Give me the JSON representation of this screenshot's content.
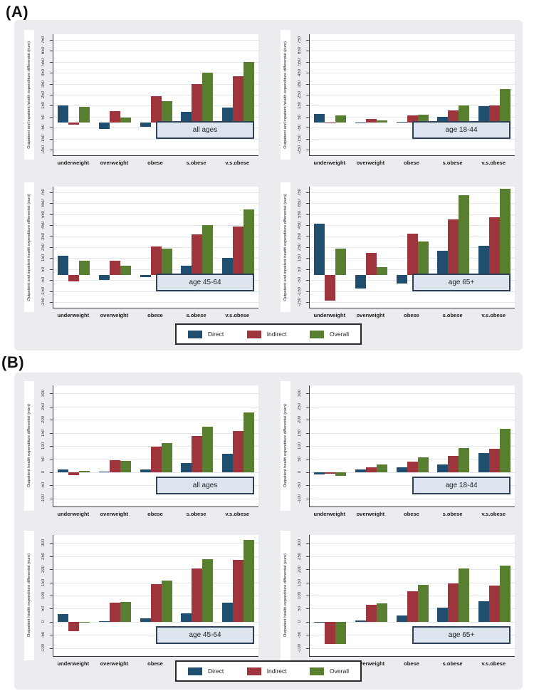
{
  "figure": {
    "panel_a_label": "(A)",
    "panel_b_label": "(B)",
    "legend": {
      "position": "bottom-center",
      "items": [
        {
          "label": "Direct",
          "color": "#1f4e6e"
        },
        {
          "label": "Indirect",
          "color": "#9e353c"
        },
        {
          "label": "Overall",
          "color": "#587e2f"
        }
      ]
    },
    "colors": {
      "panel_background": "#eaecef",
      "plot_background": "#ffffff",
      "gridline": "#e2e6eb",
      "age_box_fill": "#dde6ef",
      "age_box_border": "#2f4157"
    }
  },
  "chart_data": [
    {
      "type": "bar",
      "panel": "A",
      "title": "all ages",
      "ylabel": "Outpatient and inpatient health expenditure differential (euro)",
      "xlabel": "",
      "categories": [
        "underweight",
        "overweight",
        "obese",
        "s.obese",
        "v.s.obese"
      ],
      "series": [
        {
          "name": "Direct",
          "values": [
            150,
            -60,
            -40,
            95,
            135
          ]
        },
        {
          "name": "Indirect",
          "values": [
            -20,
            100,
            240,
            350,
            420
          ]
        },
        {
          "name": "Overall",
          "values": [
            140,
            40,
            190,
            450,
            550
          ]
        }
      ],
      "yticks": [
        -250,
        -150,
        -50,
        50,
        150,
        250,
        350,
        450,
        550,
        650,
        750
      ],
      "ylim": [
        -300,
        800
      ],
      "grid": true
    },
    {
      "type": "bar",
      "panel": "A",
      "title": "age 18-44",
      "ylabel": "Outpatient and inpatient health expenditure differential (euro)",
      "xlabel": "",
      "categories": [
        "underweight",
        "overweight",
        "obese",
        "s.obese",
        "v.s.obese"
      ],
      "series": [
        {
          "name": "Direct",
          "values": [
            75,
            -8,
            5,
            48,
            145
          ]
        },
        {
          "name": "Indirect",
          "values": [
            -12,
            30,
            65,
            110,
            155
          ]
        },
        {
          "name": "Overall",
          "values": [
            60,
            18,
            70,
            155,
            300
          ]
        }
      ],
      "yticks": [
        -250,
        -150,
        -50,
        50,
        150,
        250,
        350,
        450,
        550,
        650,
        750
      ],
      "ylim": [
        -300,
        800
      ],
      "grid": true
    },
    {
      "type": "bar",
      "panel": "A",
      "title": "age 45-64",
      "ylabel": "Outpatient and inpatient health expenditure differential (euro)",
      "xlabel": "",
      "categories": [
        "underweight",
        "overweight",
        "obese",
        "s.obese",
        "v.s.obese"
      ],
      "series": [
        {
          "name": "Direct",
          "values": [
            175,
            -45,
            -20,
            80,
            155
          ]
        },
        {
          "name": "Indirect",
          "values": [
            -60,
            130,
            255,
            365,
            440
          ]
        },
        {
          "name": "Overall",
          "values": [
            125,
            80,
            235,
            450,
            590
          ]
        }
      ],
      "yticks": [
        -250,
        -150,
        -50,
        50,
        150,
        250,
        350,
        450,
        550,
        650,
        750
      ],
      "ylim": [
        -300,
        800
      ],
      "grid": true
    },
    {
      "type": "bar",
      "panel": "A",
      "title": "age 65+",
      "ylabel": "Outpatient and inpatient health expenditure differential (euro)",
      "xlabel": "",
      "categories": [
        "underweight",
        "overweight",
        "obese",
        "s.obese",
        "v.s.obese"
      ],
      "series": [
        {
          "name": "Direct",
          "values": [
            465,
            -125,
            -80,
            215,
            265
          ]
        },
        {
          "name": "Indirect",
          "values": [
            -235,
            200,
            375,
            500,
            525
          ]
        },
        {
          "name": "Overall",
          "values": [
            235,
            70,
            300,
            720,
            780
          ]
        }
      ],
      "yticks": [
        -250,
        -150,
        -50,
        50,
        150,
        250,
        350,
        450,
        550,
        650,
        750
      ],
      "ylim": [
        -300,
        800
      ],
      "grid": true
    },
    {
      "type": "bar",
      "panel": "B",
      "title": "all ages",
      "ylabel": "Outpatient health expenditure differential (euro)",
      "xlabel": "",
      "categories": [
        "underweight",
        "overweight",
        "obese",
        "s.obese",
        "v.s.obese"
      ],
      "series": [
        {
          "name": "Direct",
          "values": [
            12,
            2,
            12,
            34,
            70
          ]
        },
        {
          "name": "Indirect",
          "values": [
            -12,
            46,
            97,
            138,
            158
          ]
        },
        {
          "name": "Overall",
          "values": [
            5,
            44,
            110,
            172,
            228
          ]
        }
      ],
      "yticks": [
        -100,
        -50,
        0,
        50,
        100,
        150,
        200,
        250,
        300
      ],
      "ylim": [
        -130,
        330
      ],
      "grid": true
    },
    {
      "type": "bar",
      "panel": "B",
      "title": "age 18-44",
      "ylabel": "Outpatient health expenditure differential (euro)",
      "xlabel": "",
      "categories": [
        "underweight",
        "overweight",
        "obese",
        "s.obese",
        "v.s.obese"
      ],
      "series": [
        {
          "name": "Direct",
          "values": [
            -8,
            10,
            18,
            31,
            73
          ]
        },
        {
          "name": "Indirect",
          "values": [
            -5,
            18,
            40,
            63,
            90
          ]
        },
        {
          "name": "Overall",
          "values": [
            -15,
            29,
            58,
            93,
            164
          ]
        }
      ],
      "yticks": [
        -100,
        -50,
        0,
        50,
        100,
        150,
        200,
        250,
        300
      ],
      "ylim": [
        -130,
        330
      ],
      "grid": true
    },
    {
      "type": "bar",
      "panel": "B",
      "title": "age 45-64",
      "ylabel": "Outpatient health expenditure differential (euro)",
      "xlabel": "",
      "categories": [
        "underweight",
        "overweight",
        "obese",
        "s.obese",
        "v.s.obese"
      ],
      "series": [
        {
          "name": "Direct",
          "values": [
            30,
            2,
            13,
            32,
            73
          ]
        },
        {
          "name": "Indirect",
          "values": [
            -35,
            74,
            144,
            204,
            236
          ]
        },
        {
          "name": "Overall",
          "values": [
            -3,
            76,
            158,
            237,
            310
          ]
        }
      ],
      "yticks": [
        -100,
        -50,
        0,
        50,
        100,
        150,
        200,
        250,
        300
      ],
      "ylim": [
        -130,
        330
      ],
      "grid": true
    },
    {
      "type": "bar",
      "panel": "B",
      "title": "age 65+",
      "ylabel": "Outpatient health expenditure differential (euro)",
      "xlabel": "",
      "categories": [
        "underweight",
        "overweight",
        "obese",
        "s.obese",
        "v.s.obese"
      ],
      "series": [
        {
          "name": "Direct",
          "values": [
            -2,
            5,
            25,
            55,
            78
          ]
        },
        {
          "name": "Indirect",
          "values": [
            -85,
            64,
            115,
            146,
            138
          ]
        },
        {
          "name": "Overall",
          "values": [
            -85,
            70,
            140,
            202,
            215
          ]
        }
      ],
      "yticks": [
        -100,
        -50,
        0,
        50,
        100,
        150,
        200,
        250,
        300
      ],
      "ylim": [
        -130,
        330
      ],
      "grid": true
    }
  ]
}
